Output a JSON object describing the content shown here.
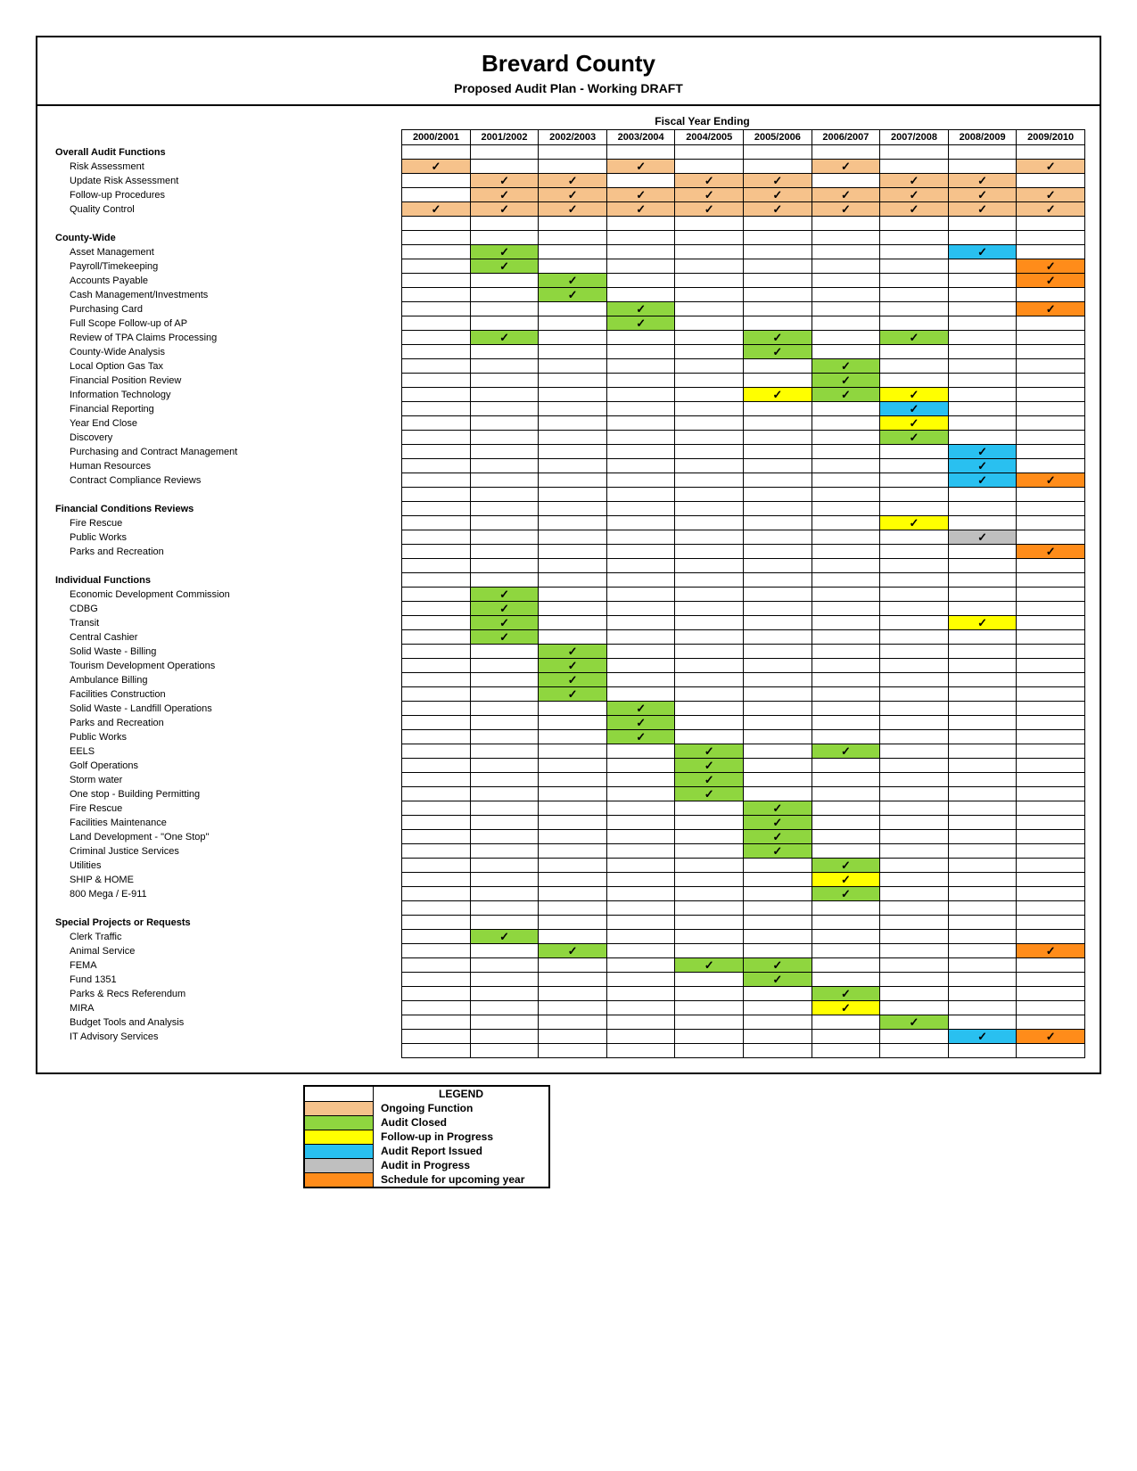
{
  "title": "Brevard County",
  "subtitle": "Proposed Audit Plan - Working DRAFT",
  "fiscalHeading": "Fiscal Year Ending",
  "checkmark": "✓",
  "colors": {
    "ongoing": "#f6c28b",
    "closed": "#8fd63f",
    "followup": "#ffff00",
    "issued": "#29c0f0",
    "inprogress": "#bfbfbf",
    "scheduled": "#ff8c1a",
    "none": "#ffffff"
  },
  "years": [
    "2000/2001",
    "2001/2002",
    "2002/2003",
    "2003/2004",
    "2004/2005",
    "2005/2006",
    "2006/2007",
    "2007/2008",
    "2008/2009",
    "2009/2010"
  ],
  "sections": [
    {
      "heading": "Overall Audit Functions",
      "rows": [
        {
          "label": "Risk Assessment",
          "cells": [
            "ongoing",
            "",
            "",
            "ongoing",
            "",
            "",
            "ongoing",
            "",
            "",
            "ongoing"
          ]
        },
        {
          "label": "Update Risk Assessment",
          "cells": [
            "",
            "ongoing",
            "ongoing",
            "",
            "ongoing",
            "ongoing",
            "",
            "ongoing",
            "ongoing",
            ""
          ]
        },
        {
          "label": "Follow-up Procedures",
          "cells": [
            "",
            "ongoing",
            "ongoing",
            "ongoing",
            "ongoing",
            "ongoing",
            "ongoing",
            "ongoing",
            "ongoing",
            "ongoing"
          ]
        },
        {
          "label": "Quality Control",
          "cells": [
            "ongoing",
            "ongoing",
            "ongoing",
            "ongoing",
            "ongoing",
            "ongoing",
            "ongoing",
            "ongoing",
            "ongoing",
            "ongoing"
          ]
        }
      ]
    },
    {
      "heading": "County-Wide",
      "rows": [
        {
          "label": "Asset Management",
          "cells": [
            "",
            "closed",
            "",
            "",
            "",
            "",
            "",
            "",
            "issued",
            ""
          ]
        },
        {
          "label": "Payroll/Timekeeping",
          "cells": [
            "",
            "closed",
            "",
            "",
            "",
            "",
            "",
            "",
            "",
            "scheduled"
          ]
        },
        {
          "label": "Accounts Payable",
          "cells": [
            "",
            "",
            "closed",
            "",
            "",
            "",
            "",
            "",
            "",
            "scheduled"
          ]
        },
        {
          "label": "Cash Management/Investments",
          "cells": [
            "",
            "",
            "closed",
            "",
            "",
            "",
            "",
            "",
            "",
            ""
          ]
        },
        {
          "label": "Purchasing Card",
          "cells": [
            "",
            "",
            "",
            "closed",
            "",
            "",
            "",
            "",
            "",
            "scheduled"
          ]
        },
        {
          "label": "Full Scope Follow-up of AP",
          "cells": [
            "",
            "",
            "",
            "closed",
            "",
            "",
            "",
            "",
            "",
            ""
          ]
        },
        {
          "label": "Review of TPA Claims Processing",
          "cells": [
            "",
            "closed",
            "",
            "",
            "",
            "closed",
            "",
            "closed",
            "",
            ""
          ]
        },
        {
          "label": "County-Wide Analysis",
          "cells": [
            "",
            "",
            "",
            "",
            "",
            "closed",
            "",
            "",
            "",
            ""
          ]
        },
        {
          "label": "Local Option Gas Tax",
          "cells": [
            "",
            "",
            "",
            "",
            "",
            "",
            "closed",
            "",
            "",
            ""
          ]
        },
        {
          "label": "Financial Position Review",
          "cells": [
            "",
            "",
            "",
            "",
            "",
            "",
            "closed",
            "",
            "",
            ""
          ]
        },
        {
          "label": "Information Technology",
          "cells": [
            "",
            "",
            "",
            "",
            "",
            "followup",
            "closed",
            "followup",
            "",
            ""
          ]
        },
        {
          "label": "Financial Reporting",
          "cells": [
            "",
            "",
            "",
            "",
            "",
            "",
            "",
            "issued",
            "",
            ""
          ]
        },
        {
          "label": "Year End Close",
          "cells": [
            "",
            "",
            "",
            "",
            "",
            "",
            "",
            "followup",
            "",
            ""
          ]
        },
        {
          "label": "Discovery",
          "cells": [
            "",
            "",
            "",
            "",
            "",
            "",
            "",
            "closed",
            "",
            ""
          ]
        },
        {
          "label": "Purchasing and Contract Management",
          "cells": [
            "",
            "",
            "",
            "",
            "",
            "",
            "",
            "",
            "issued",
            ""
          ]
        },
        {
          "label": "Human Resources",
          "cells": [
            "",
            "",
            "",
            "",
            "",
            "",
            "",
            "",
            "issued",
            ""
          ]
        },
        {
          "label": "Contract Compliance Reviews",
          "cells": [
            "",
            "",
            "",
            "",
            "",
            "",
            "",
            "",
            "issued",
            "scheduled"
          ]
        }
      ]
    },
    {
      "heading": "Financial Conditions Reviews",
      "rows": [
        {
          "label": "Fire Rescue",
          "cells": [
            "",
            "",
            "",
            "",
            "",
            "",
            "",
            "followup",
            "",
            ""
          ]
        },
        {
          "label": "Public Works",
          "cells": [
            "",
            "",
            "",
            "",
            "",
            "",
            "",
            "",
            "inprogress",
            ""
          ]
        },
        {
          "label": "Parks and Recreation",
          "cells": [
            "",
            "",
            "",
            "",
            "",
            "",
            "",
            "",
            "",
            "scheduled"
          ]
        }
      ]
    },
    {
      "heading": "Individual Functions",
      "rows": [
        {
          "label": "Economic Development Commission",
          "cells": [
            "",
            "closed",
            "",
            "",
            "",
            "",
            "",
            "",
            "",
            ""
          ]
        },
        {
          "label": "CDBG",
          "cells": [
            "",
            "closed",
            "",
            "",
            "",
            "",
            "",
            "",
            "",
            ""
          ]
        },
        {
          "label": "Transit",
          "cells": [
            "",
            "closed",
            "",
            "",
            "",
            "",
            "",
            "",
            "followup",
            ""
          ]
        },
        {
          "label": "Central Cashier",
          "cells": [
            "",
            "closed",
            "",
            "",
            "",
            "",
            "",
            "",
            "",
            ""
          ]
        },
        {
          "label": "Solid Waste - Billing",
          "cells": [
            "",
            "",
            "closed",
            "",
            "",
            "",
            "",
            "",
            "",
            ""
          ]
        },
        {
          "label": "Tourism Development Operations",
          "cells": [
            "",
            "",
            "closed",
            "",
            "",
            "",
            "",
            "",
            "",
            ""
          ]
        },
        {
          "label": "Ambulance Billing",
          "cells": [
            "",
            "",
            "closed",
            "",
            "",
            "",
            "",
            "",
            "",
            ""
          ]
        },
        {
          "label": "Facilities Construction",
          "cells": [
            "",
            "",
            "closed",
            "",
            "",
            "",
            "",
            "",
            "",
            ""
          ]
        },
        {
          "label": "Solid Waste - Landfill Operations",
          "cells": [
            "",
            "",
            "",
            "closed",
            "",
            "",
            "",
            "",
            "",
            ""
          ]
        },
        {
          "label": "Parks and Recreation",
          "cells": [
            "",
            "",
            "",
            "closed",
            "",
            "",
            "",
            "",
            "",
            ""
          ]
        },
        {
          "label": "Public Works",
          "cells": [
            "",
            "",
            "",
            "closed",
            "",
            "",
            "",
            "",
            "",
            ""
          ]
        },
        {
          "label": "EELS",
          "cells": [
            "",
            "",
            "",
            "",
            "closed",
            "",
            "closed",
            "",
            "",
            ""
          ]
        },
        {
          "label": "Golf Operations",
          "cells": [
            "",
            "",
            "",
            "",
            "closed",
            "",
            "",
            "",
            "",
            ""
          ]
        },
        {
          "label": "Storm water",
          "cells": [
            "",
            "",
            "",
            "",
            "closed",
            "",
            "",
            "",
            "",
            ""
          ]
        },
        {
          "label": "One stop - Building Permitting",
          "cells": [
            "",
            "",
            "",
            "",
            "closed",
            "",
            "",
            "",
            "",
            ""
          ]
        },
        {
          "label": "Fire Rescue",
          "cells": [
            "",
            "",
            "",
            "",
            "",
            "closed",
            "",
            "",
            "",
            ""
          ]
        },
        {
          "label": "Facilities Maintenance",
          "cells": [
            "",
            "",
            "",
            "",
            "",
            "closed",
            "",
            "",
            "",
            ""
          ]
        },
        {
          "label": "Land Development - \"One Stop\"",
          "cells": [
            "",
            "",
            "",
            "",
            "",
            "closed",
            "",
            "",
            "",
            ""
          ]
        },
        {
          "label": "Criminal Justice Services",
          "cells": [
            "",
            "",
            "",
            "",
            "",
            "closed",
            "",
            "",
            "",
            ""
          ]
        },
        {
          "label": "Utilities",
          "cells": [
            "",
            "",
            "",
            "",
            "",
            "",
            "closed",
            "",
            "",
            ""
          ]
        },
        {
          "label": "SHIP & HOME",
          "cells": [
            "",
            "",
            "",
            "",
            "",
            "",
            "followup",
            "",
            "",
            ""
          ]
        },
        {
          "label": "800 Mega / E-911",
          "cells": [
            "",
            "",
            "",
            "",
            "",
            "",
            "closed",
            "",
            "",
            ""
          ]
        }
      ]
    },
    {
      "heading": "Special Projects or Requests",
      "rows": [
        {
          "label": "Clerk Traffic",
          "cells": [
            "",
            "closed",
            "",
            "",
            "",
            "",
            "",
            "",
            "",
            ""
          ]
        },
        {
          "label": "Animal Service",
          "cells": [
            "",
            "",
            "closed",
            "",
            "",
            "",
            "",
            "",
            "",
            "scheduled"
          ]
        },
        {
          "label": "FEMA",
          "cells": [
            "",
            "",
            "",
            "",
            "closed",
            "closed",
            "",
            "",
            "",
            ""
          ]
        },
        {
          "label": "Fund 1351",
          "cells": [
            "",
            "",
            "",
            "",
            "",
            "closed",
            "",
            "",
            "",
            ""
          ]
        },
        {
          "label": "Parks & Recs Referendum",
          "cells": [
            "",
            "",
            "",
            "",
            "",
            "",
            "closed",
            "",
            "",
            ""
          ]
        },
        {
          "label": "MIRA",
          "cells": [
            "",
            "",
            "",
            "",
            "",
            "",
            "followup",
            "",
            "",
            ""
          ]
        },
        {
          "label": "Budget Tools and Analysis",
          "cells": [
            "",
            "",
            "",
            "",
            "",
            "",
            "",
            "closed",
            "",
            ""
          ]
        },
        {
          "label": "IT Advisory Services",
          "cells": [
            "",
            "",
            "",
            "",
            "",
            "",
            "",
            "",
            "issued",
            "scheduled"
          ]
        }
      ]
    }
  ],
  "legend": {
    "title": "LEGEND",
    "items": [
      {
        "color": "ongoing",
        "label": "Ongoing Function"
      },
      {
        "color": "closed",
        "label": "Audit Closed"
      },
      {
        "color": "followup",
        "label": "Follow-up in Progress"
      },
      {
        "color": "issued",
        "label": "Audit Report Issued"
      },
      {
        "color": "inprogress",
        "label": "Audit in Progress"
      },
      {
        "color": "scheduled",
        "label": "Schedule for upcoming year"
      }
    ]
  }
}
